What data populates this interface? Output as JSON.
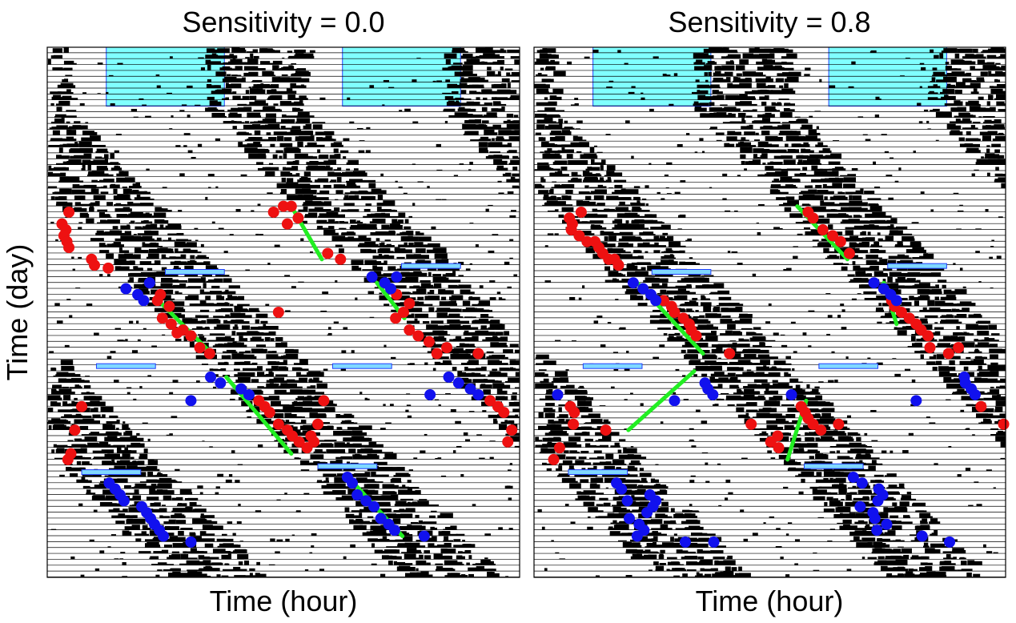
{
  "figure": {
    "ylabel": "Time (day)"
  },
  "colors": {
    "activity": "#000000",
    "row_line": "#000000",
    "light_block": "#80ffff",
    "light_block_border": "#2040ff",
    "short_block": "#80d8ff",
    "onset_red": "#ee1111",
    "onset_blue": "#1111ee",
    "fit_line": "#22ee22"
  },
  "chart_data": [
    {
      "type": "scatter",
      "title": "Sensitivity = 0.0",
      "xlabel": "Time (hour)",
      "ylabel": "Time (day)",
      "xlim": [
        0,
        48
      ],
      "ylim": [
        0,
        90
      ],
      "n_days": 90,
      "light_blocks": [
        {
          "x0": 6,
          "x1": 18,
          "y0": 0,
          "y1": 10
        },
        {
          "x0": 30,
          "x1": 42,
          "y0": 0,
          "y1": 10
        }
      ],
      "short_blocks": [
        {
          "x0": 12,
          "x1": 18,
          "day": 38
        },
        {
          "x0": 36,
          "x1": 42,
          "day": 37
        },
        {
          "x0": 5,
          "x1": 11,
          "day": 54
        },
        {
          "x0": 29,
          "x1": 35,
          "day": 54
        },
        {
          "x0": 3.5,
          "x1": 9.5,
          "day": 72
        },
        {
          "x0": 27.5,
          "x1": 33.5,
          "day": 71
        }
      ],
      "red_onsets": [
        [
          2.2,
          28
        ],
        [
          1.5,
          30
        ],
        [
          1.9,
          31
        ],
        [
          1.7,
          32
        ],
        [
          2.0,
          33
        ],
        [
          2.2,
          34
        ],
        [
          4.5,
          36
        ],
        [
          4.8,
          37
        ],
        [
          6.2,
          37.5
        ],
        [
          23,
          28
        ],
        [
          24,
          27
        ],
        [
          24.8,
          27
        ],
        [
          25.5,
          29
        ],
        [
          24.4,
          30
        ],
        [
          28.5,
          35
        ],
        [
          29.8,
          36
        ],
        [
          11.5,
          42
        ],
        [
          11.2,
          43
        ],
        [
          12.4,
          44
        ],
        [
          11.7,
          46
        ],
        [
          12.6,
          47
        ],
        [
          13.8,
          48
        ],
        [
          14.6,
          49
        ],
        [
          13.2,
          48.5
        ],
        [
          15.5,
          51
        ],
        [
          16.5,
          52
        ],
        [
          23.5,
          45
        ],
        [
          35.5,
          42
        ],
        [
          36.8,
          43.5
        ],
        [
          36.2,
          45
        ],
        [
          35.4,
          46
        ],
        [
          36.8,
          48
        ],
        [
          37.7,
          49
        ],
        [
          38.8,
          50
        ],
        [
          39.6,
          52
        ],
        [
          40.6,
          51
        ],
        [
          43.8,
          52
        ],
        [
          21.5,
          60
        ],
        [
          22.1,
          61
        ],
        [
          22.6,
          62
        ],
        [
          23.5,
          64
        ],
        [
          24.4,
          65
        ],
        [
          24.9,
          66
        ],
        [
          25.6,
          67
        ],
        [
          26.4,
          68
        ],
        [
          27.1,
          67
        ],
        [
          26.8,
          66
        ],
        [
          27.5,
          64
        ],
        [
          28.1,
          60
        ],
        [
          3.5,
          61
        ],
        [
          2.8,
          65
        ],
        [
          2.4,
          69
        ],
        [
          2.1,
          70
        ],
        [
          45,
          60
        ],
        [
          45.8,
          61
        ],
        [
          46.4,
          62
        ],
        [
          47.2,
          65
        ],
        [
          46.8,
          67
        ]
      ],
      "blue_onsets": [
        [
          8.0,
          41
        ],
        [
          9.2,
          42
        ],
        [
          9.8,
          43
        ],
        [
          10.4,
          40
        ],
        [
          16.6,
          56
        ],
        [
          17.6,
          57
        ],
        [
          19.7,
          58
        ],
        [
          20.5,
          59
        ],
        [
          14.6,
          60
        ],
        [
          33,
          39
        ],
        [
          34.3,
          40
        ],
        [
          34.9,
          41
        ],
        [
          35.5,
          39
        ],
        [
          40.8,
          56
        ],
        [
          41.8,
          57
        ],
        [
          43,
          58
        ],
        [
          43.8,
          59
        ],
        [
          38.9,
          59
        ],
        [
          30.5,
          73
        ],
        [
          31,
          74
        ],
        [
          31.5,
          76
        ],
        [
          32.4,
          77
        ],
        [
          33.2,
          78
        ],
        [
          33.9,
          80
        ],
        [
          34.7,
          81
        ],
        [
          35.3,
          82
        ],
        [
          38.3,
          83
        ],
        [
          6.3,
          74
        ],
        [
          6.9,
          75
        ],
        [
          7.4,
          76
        ],
        [
          7.8,
          77
        ],
        [
          9.6,
          78
        ],
        [
          10.1,
          79
        ],
        [
          10.5,
          80
        ],
        [
          10.9,
          81
        ],
        [
          11.4,
          82
        ],
        [
          11.8,
          83
        ],
        [
          14.6,
          84
        ]
      ],
      "fit_lines": [
        [
          [
            24.8,
            27
          ],
          [
            27.9,
            36
          ]
        ],
        [
          [
            11.3,
            43
          ],
          [
            16.7,
            52
          ]
        ],
        [
          [
            33.5,
            40
          ],
          [
            36.3,
            46
          ]
        ],
        [
          [
            18.2,
            56
          ],
          [
            24.8,
            69
          ]
        ],
        [
          [
            30.6,
            73
          ],
          [
            36.1,
            83
          ]
        ]
      ]
    },
    {
      "type": "scatter",
      "title": "Sensitivity = 0.8",
      "xlabel": "Time (hour)",
      "ylabel": "Time (day)",
      "xlim": [
        0,
        48
      ],
      "ylim": [
        0,
        90
      ],
      "n_days": 90,
      "light_blocks": [
        {
          "x0": 6,
          "x1": 18,
          "y0": 0,
          "y1": 10
        },
        {
          "x0": 30,
          "x1": 42,
          "y0": 0,
          "y1": 10
        }
      ],
      "short_blocks": [
        {
          "x0": 12,
          "x1": 18,
          "day": 38
        },
        {
          "x0": 36,
          "x1": 42,
          "day": 37
        },
        {
          "x0": 5,
          "x1": 11,
          "day": 54
        },
        {
          "x0": 29,
          "x1": 35,
          "day": 54
        },
        {
          "x0": 3.5,
          "x1": 9.5,
          "day": 72
        },
        {
          "x0": 27.5,
          "x1": 33.5,
          "day": 71
        }
      ],
      "red_onsets": [
        [
          4.8,
          28
        ],
        [
          3.6,
          29
        ],
        [
          3.9,
          30
        ],
        [
          3.8,
          31
        ],
        [
          4.6,
          32
        ],
        [
          5.4,
          33
        ],
        [
          6.2,
          33
        ],
        [
          6.6,
          34
        ],
        [
          7.0,
          35
        ],
        [
          7.6,
          36
        ],
        [
          8.2,
          36
        ],
        [
          8.6,
          37
        ],
        [
          27.9,
          28
        ],
        [
          28.4,
          29
        ],
        [
          29.4,
          31
        ],
        [
          30.4,
          32
        ],
        [
          31.2,
          33
        ],
        [
          32.1,
          35
        ],
        [
          13.2,
          43
        ],
        [
          14.0,
          44
        ],
        [
          14.3,
          45
        ],
        [
          15.2,
          46
        ],
        [
          15.8,
          47
        ],
        [
          16.0,
          48
        ],
        [
          16.5,
          49
        ],
        [
          19.9,
          52
        ],
        [
          36.4,
          43
        ],
        [
          36.7,
          44
        ],
        [
          37.4,
          45
        ],
        [
          38.2,
          46
        ],
        [
          38.9,
          47
        ],
        [
          39.4,
          48
        ],
        [
          40.1,
          49
        ],
        [
          40.3,
          51
        ],
        [
          42.2,
          52
        ],
        [
          43.2,
          51
        ],
        [
          3.7,
          61
        ],
        [
          4.1,
          62
        ],
        [
          4.0,
          64
        ],
        [
          7.3,
          65
        ],
        [
          22.1,
          64
        ],
        [
          24.8,
          66
        ],
        [
          24.1,
          67
        ],
        [
          24.9,
          68
        ],
        [
          27.2,
          61
        ],
        [
          27.6,
          62
        ],
        [
          27.9,
          63
        ],
        [
          28.4,
          64
        ],
        [
          29.2,
          65
        ],
        [
          31.0,
          64
        ],
        [
          45.5,
          61
        ],
        [
          47.8,
          64
        ],
        [
          2.6,
          68
        ],
        [
          2.0,
          70
        ]
      ],
      "blue_onsets": [
        [
          10.1,
          40
        ],
        [
          11.1,
          41
        ],
        [
          11.9,
          42
        ],
        [
          12.4,
          43
        ],
        [
          17.4,
          57
        ],
        [
          17.7,
          58
        ],
        [
          18.2,
          59
        ],
        [
          14.3,
          60
        ],
        [
          2.4,
          59
        ],
        [
          26.2,
          59
        ],
        [
          34.6,
          40
        ],
        [
          35.6,
          41
        ],
        [
          36.3,
          42
        ],
        [
          36.9,
          43
        ],
        [
          43.8,
          56
        ],
        [
          43.9,
          57
        ],
        [
          44.5,
          58
        ],
        [
          44.9,
          59
        ],
        [
          38.9,
          60
        ],
        [
          8.4,
          74
        ],
        [
          8.9,
          75
        ],
        [
          9.5,
          77
        ],
        [
          11.8,
          76
        ],
        [
          12.4,
          77
        ],
        [
          12.1,
          78
        ],
        [
          11.5,
          79
        ],
        [
          9.7,
          80
        ],
        [
          10.7,
          81
        ],
        [
          11.2,
          82
        ],
        [
          10.5,
          83
        ],
        [
          15.4,
          84
        ],
        [
          18.3,
          84
        ],
        [
          32.5,
          73
        ],
        [
          33.4,
          74
        ],
        [
          35.1,
          75
        ],
        [
          35.5,
          76
        ],
        [
          35.0,
          77
        ],
        [
          33.2,
          78
        ],
        [
          34.5,
          79
        ],
        [
          35.9,
          81
        ],
        [
          34.7,
          80
        ],
        [
          34.9,
          82
        ],
        [
          39.5,
          83
        ],
        [
          42.3,
          84
        ]
      ],
      "fit_lines": [
        [
          [
            26.8,
            27
          ],
          [
            31.9,
            36
          ]
        ],
        [
          [
            10.5,
            40
          ],
          [
            17.2,
            52
          ]
        ],
        [
          [
            35.6,
            40
          ],
          [
            36.9,
            47
          ]
        ],
        [
          [
            9.6,
            65
          ],
          [
            16.3,
            55
          ]
        ],
        [
          [
            25.8,
            70
          ],
          [
            27.7,
            60
          ]
        ]
      ]
    }
  ]
}
